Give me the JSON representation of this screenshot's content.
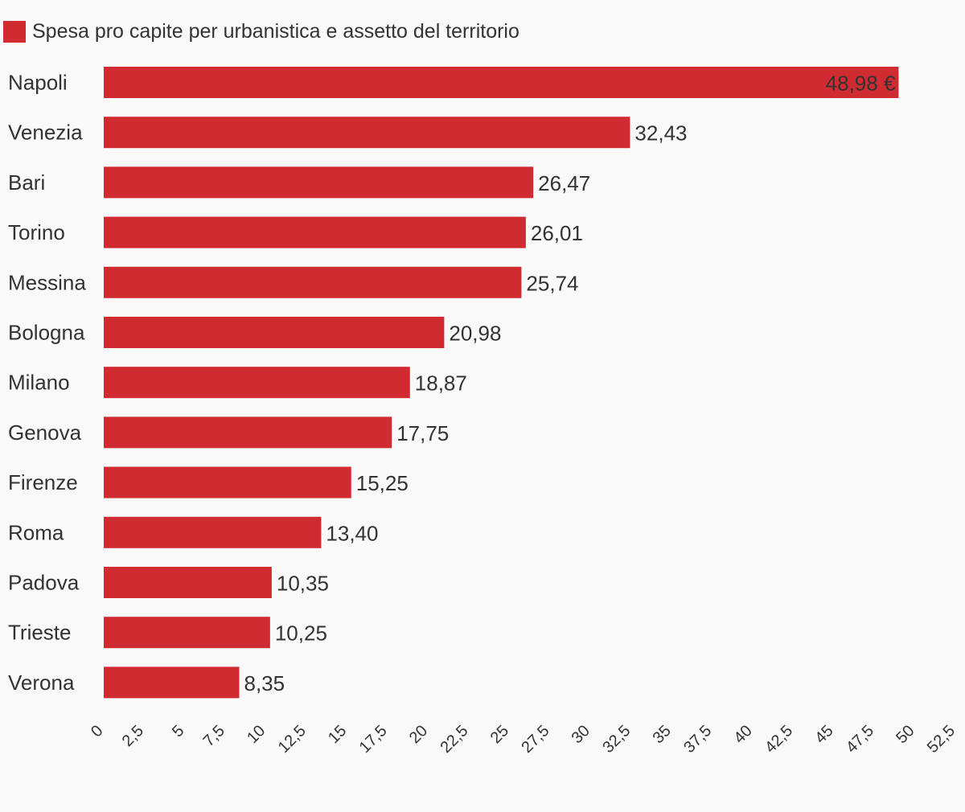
{
  "legend": {
    "label": "Spesa pro capite per urbanistica e assetto del territorio",
    "color": "#d02b31"
  },
  "chart_data": {
    "type": "bar",
    "orientation": "horizontal",
    "categories": [
      "Napoli",
      "Venezia",
      "Bari",
      "Torino",
      "Messina",
      "Bologna",
      "Milano",
      "Genova",
      "Firenze",
      "Roma",
      "Padova",
      "Trieste",
      "Verona"
    ],
    "series": [
      {
        "name": "Spesa pro capite per urbanistica e assetto del territorio",
        "values": [
          48.98,
          32.43,
          26.47,
          26.01,
          25.74,
          20.98,
          18.87,
          17.75,
          15.25,
          13.4,
          10.35,
          10.25,
          8.35
        ],
        "labels": [
          "48,98 €",
          "32,43",
          "26,47",
          "26,01",
          "25,74",
          "20,98",
          "18,87",
          "17,75",
          "15,25",
          "13,40",
          "10,35",
          "10,25",
          "8,35"
        ],
        "color": "#d02b31"
      }
    ],
    "xlim": [
      0,
      52.5
    ],
    "x_ticks": [
      0,
      2.5,
      5,
      7.5,
      10,
      12.5,
      15,
      17.5,
      20,
      22.5,
      25,
      27.5,
      30,
      32.5,
      35,
      37.5,
      40,
      42.5,
      45,
      47.5,
      50,
      52.5
    ],
    "x_tick_labels": [
      "0",
      "2,5",
      "5",
      "7,5",
      "10",
      "12,5",
      "15",
      "17,5",
      "20",
      "22,5",
      "25",
      "27,5",
      "30",
      "32,5",
      "35",
      "37,5",
      "40",
      "42,5",
      "45",
      "47,5",
      "50",
      "52,5"
    ],
    "grid": false,
    "legend_position": "top-left"
  }
}
